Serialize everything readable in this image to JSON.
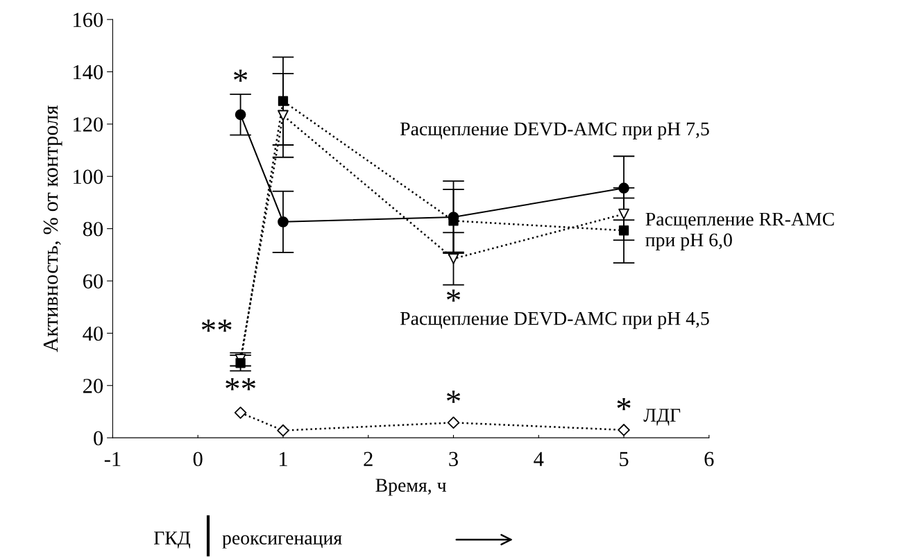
{
  "chart_data": {
    "type": "line",
    "xlabel": "Время, ч",
    "ylabel": "Активность, % от контроля",
    "xlim": [
      -1,
      6
    ],
    "xticks": [
      -1,
      0,
      1,
      2,
      3,
      4,
      5,
      6
    ],
    "ylim": [
      0,
      160
    ],
    "yticks": [
      0,
      20,
      40,
      60,
      80,
      100,
      120,
      140,
      160
    ],
    "grid": false,
    "legend": false,
    "series": [
      {
        "color": "#000000",
        "marker": "circle",
        "line_style": "solid",
        "x": [
          0.5,
          1,
          3,
          5
        ],
        "values": [
          123.6,
          82.6,
          84.4,
          95.5
        ],
        "errors": [
          7.8,
          11.7,
          13.8,
          12.2
        ]
      },
      {
        "color": "#000000",
        "marker": "triangle",
        "line_style": "dotted",
        "x": [
          0.5,
          1,
          3,
          5
        ],
        "values": [
          30,
          123.3,
          68.5,
          85.6
        ],
        "errors": [
          2.5,
          16,
          10,
          10
        ]
      },
      {
        "name": "Расщепление RR-AMC при pH 6,0",
        "color": "#000000",
        "marker": "square",
        "line_style": "dotted",
        "x": [
          0.5,
          1,
          3,
          5
        ],
        "values": [
          28.6,
          128.8,
          83,
          79.3
        ],
        "errors": [
          3,
          16.8,
          12,
          12.4
        ]
      },
      {
        "name": "ЛДГ",
        "color": "#000000",
        "marker": "diamond",
        "line_style": "dotted",
        "x": [
          0.5,
          1,
          3,
          5
        ],
        "values": [
          9.6,
          2.8,
          5.8,
          3
        ]
      }
    ],
    "annotations": [
      {
        "text": "*",
        "x": 0.5,
        "y": 123.6
      },
      {
        "text": "**",
        "x": 0.5,
        "y": 30
      },
      {
        "text": "**",
        "x": 0.5,
        "y": 9.6
      },
      {
        "text": "*",
        "x": 3,
        "y": 68.5
      },
      {
        "text": "*",
        "x": 3,
        "y": 5.8
      },
      {
        "text": "*",
        "x": 5,
        "y": 3
      },
      "Расщепление DEVD-AMC при pH 7,5",
      "Расщепление DEVD-AMC при pH 4,5",
      "ГКД",
      "реоксигенация"
    ]
  }
}
